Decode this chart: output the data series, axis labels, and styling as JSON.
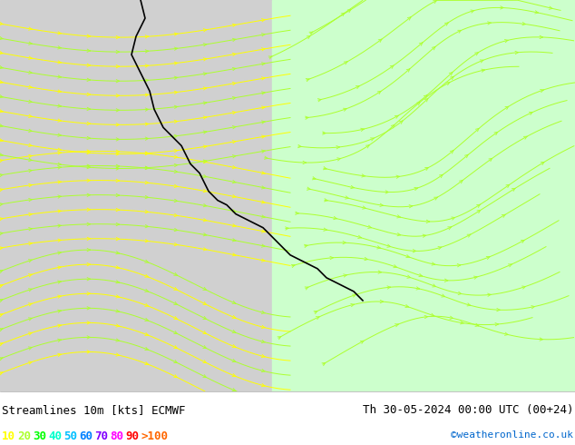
{
  "title_left": "Streamlines 10m [kts] ECMWF",
  "title_right": "Th 30-05-2024 00:00 UTC (00+24)",
  "watermark": "©weatheronline.co.uk",
  "legend_values": [
    "10",
    "20",
    "30",
    "40",
    "50",
    "60",
    "70",
    "80",
    "90",
    ">100"
  ],
  "legend_colors": [
    "#ffff00",
    "#adff2f",
    "#00ff00",
    "#00ffcc",
    "#00bfff",
    "#0080ff",
    "#8000ff",
    "#ff00ff",
    "#ff0000",
    "#ff6600"
  ],
  "bg_color_land_west": "#d3d3d3",
  "bg_color_land_east": "#ccffcc",
  "bg_color_sea": "#d3d3d3",
  "footer_bg": "#ffffff",
  "streamline_colors_west": [
    "#ffff00",
    "#adff2f"
  ],
  "streamline_colors_east": [
    "#adff2f"
  ],
  "fig_width": 6.34,
  "fig_height": 4.9,
  "dpi": 100
}
